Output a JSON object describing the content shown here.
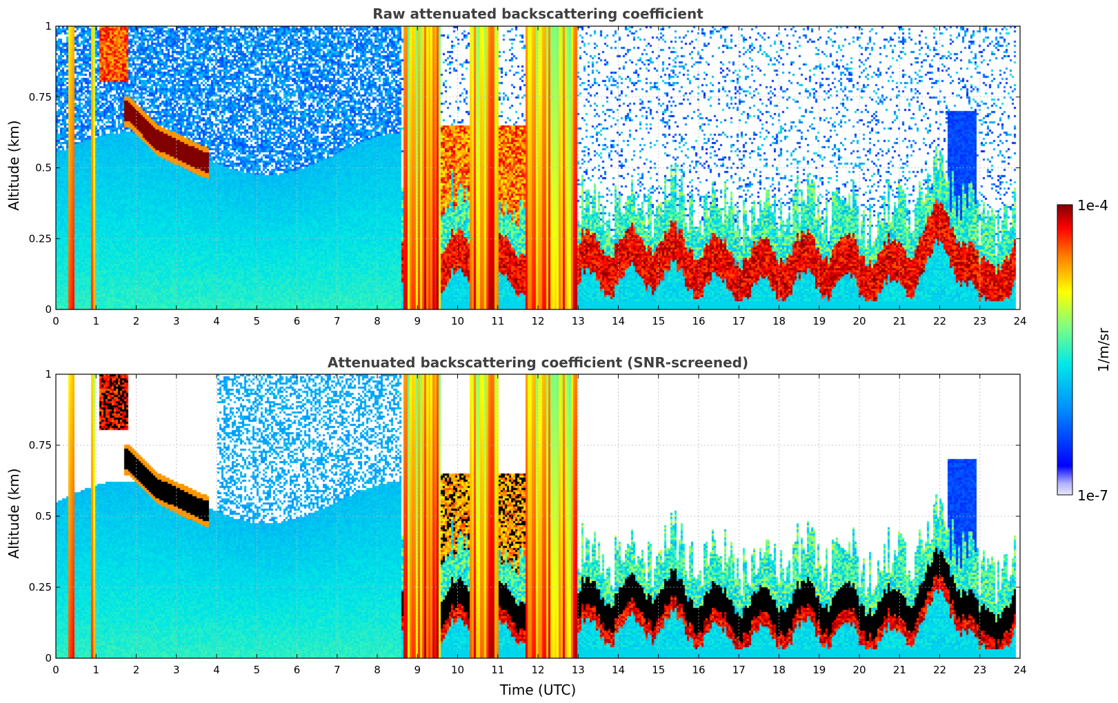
{
  "chart_data": [
    {
      "type": "heatmap",
      "title": "Raw attenuated backscattering coefficient",
      "xlabel": "",
      "ylabel": "Altitude (km)",
      "xlim": [
        0,
        24
      ],
      "ylim": [
        0,
        1
      ],
      "x_ticks": [
        "0",
        "1",
        "2",
        "3",
        "4",
        "5",
        "6",
        "7",
        "8",
        "9",
        "10",
        "11",
        "12",
        "13",
        "14",
        "15",
        "16",
        "17",
        "18",
        "19",
        "20",
        "21",
        "22",
        "23",
        "24"
      ],
      "y_ticks": [
        "0",
        "0.25",
        "0.5",
        "0.75",
        "1"
      ],
      "grid": true,
      "screened": false,
      "features": {
        "boundary_layer_top_km": [
          {
            "t": 1.8,
            "z": 0.7
          },
          {
            "t": 2.5,
            "z": 0.6
          },
          {
            "t": 3.7,
            "z": 0.52
          },
          {
            "t": 4.5,
            "z": 0.5
          },
          {
            "t": 6.0,
            "z": 0.55
          },
          {
            "t": 7.5,
            "z": 0.6
          },
          {
            "t": 8.5,
            "z": 0.6
          }
        ],
        "rain_periods_utc": [
          [
            0.3,
            0.45
          ],
          [
            0.85,
            1.0
          ],
          [
            8.65,
            9.6
          ],
          [
            10.3,
            11.0
          ],
          [
            11.7,
            13.0
          ]
        ],
        "low_cloud_base_km": [
          {
            "t": 13.0,
            "z": 0.15
          },
          {
            "t": 15.0,
            "z": 0.18
          },
          {
            "t": 17.0,
            "z": 0.12
          },
          {
            "t": 19.0,
            "z": 0.15
          },
          {
            "t": 21.0,
            "z": 0.12
          },
          {
            "t": 22.2,
            "z": 0.28
          },
          {
            "t": 23.0,
            "z": 0.05
          },
          {
            "t": 23.5,
            "z": 0.12
          }
        ]
      }
    },
    {
      "type": "heatmap",
      "title": "Attenuated backscattering coefficient (SNR-screened)",
      "xlabel": "Time (UTC)",
      "ylabel": "Altitude (km)",
      "xlim": [
        0,
        24
      ],
      "ylim": [
        0,
        1
      ],
      "x_ticks": [
        "0",
        "1",
        "2",
        "3",
        "4",
        "5",
        "6",
        "7",
        "8",
        "9",
        "10",
        "11",
        "12",
        "13",
        "14",
        "15",
        "16",
        "17",
        "18",
        "19",
        "20",
        "21",
        "22",
        "23",
        "24"
      ],
      "y_ticks": [
        "0",
        "0.25",
        "0.5",
        "0.75",
        "1"
      ],
      "grid": true,
      "screened": true
    }
  ],
  "colorbar": {
    "label": "1/m/sr",
    "min_label": "1e-7",
    "max_label": "1e-4",
    "scale": "log",
    "colormap": "jet",
    "low_color": "#e8e8f8",
    "high_color": "#800000"
  }
}
